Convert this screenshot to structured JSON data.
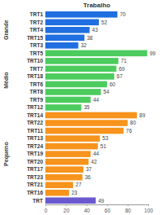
{
  "chart_data": {
    "type": "bar",
    "title": "Trabalho",
    "orientation": "horizontal",
    "data_labels": true,
    "grid": false,
    "categories": [
      "TRT1",
      "TRT2",
      "TRT4",
      "TRT15",
      "TRT3",
      "TRT5",
      "TRT10",
      "TRT7",
      "TRT18",
      "TRT6",
      "TRT8",
      "TRT9",
      "TRT12",
      "TRT14",
      "TRT22",
      "TRT11",
      "TRT13",
      "TRT24",
      "TRT19",
      "TRT20",
      "TRT17",
      "TRT23",
      "TRT21",
      "TRT16",
      "TRT"
    ],
    "series": [
      {
        "name": "Grande",
        "color": "#1f6fe0",
        "values": [
          70,
          52,
          43,
          38,
          32,
          null,
          null,
          null,
          null,
          null,
          null,
          null,
          null,
          null,
          null,
          null,
          null,
          null,
          null,
          null,
          null,
          null,
          null,
          null,
          null
        ]
      },
      {
        "name": "Médio",
        "color": "#4ccc5e",
        "values": [
          null,
          null,
          null,
          null,
          null,
          99,
          71,
          69,
          67,
          60,
          54,
          44,
          35,
          null,
          null,
          null,
          null,
          null,
          null,
          null,
          null,
          null,
          null,
          null,
          null
        ]
      },
      {
        "name": "Pequeno",
        "color": "#f7941d",
        "values": [
          null,
          null,
          null,
          null,
          null,
          null,
          null,
          null,
          null,
          null,
          null,
          null,
          null,
          89,
          80,
          76,
          53,
          51,
          44,
          42,
          37,
          36,
          27,
          23,
          null
        ]
      },
      {
        "color": "#6a5acd",
        "values": [
          null,
          null,
          null,
          null,
          null,
          null,
          null,
          null,
          null,
          null,
          null,
          null,
          null,
          null,
          null,
          null,
          null,
          null,
          null,
          null,
          null,
          null,
          null,
          null,
          49
        ]
      }
    ],
    "xlim": [
      0,
      100
    ],
    "xticks": [
      0,
      20,
      40,
      60,
      80,
      100
    ]
  }
}
